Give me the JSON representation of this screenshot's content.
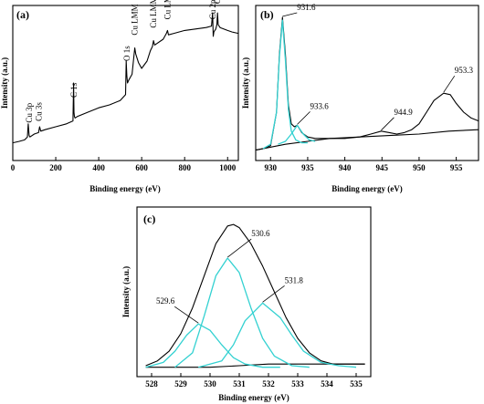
{
  "chart_data": [
    {
      "type": "line",
      "panel_label": "(a)",
      "xlabel": "Binding energy (eV)",
      "ylabel": "Intensity (a.u.)",
      "xlim": [
        0,
        1050
      ],
      "ylim": [
        0,
        100
      ],
      "xticks": [
        0,
        200,
        400,
        600,
        800,
        1000
      ],
      "series": [
        {
          "color": "#000000",
          "x": [
            0,
            30,
            55,
            68,
            72,
            76,
            80,
            100,
            120,
            125,
            130,
            150,
            200,
            250,
            280,
            283,
            285,
            287,
            290,
            300,
            350,
            400,
            450,
            500,
            525,
            528,
            531,
            534,
            540,
            555,
            565,
            568,
            572,
            585,
            600,
            625,
            640,
            650,
            655,
            660,
            700,
            715,
            720,
            725,
            750,
            800,
            850,
            900,
            925,
            930,
            933,
            936,
            945,
            950,
            953,
            956,
            965,
            1000,
            1020,
            1050
          ],
          "y": [
            9,
            10,
            11,
            13,
            22,
            14,
            13,
            15,
            16,
            20,
            17,
            18,
            20,
            22,
            24,
            50,
            30,
            27,
            26,
            27,
            30,
            33,
            35,
            38,
            42,
            65,
            55,
            50,
            52,
            56,
            70,
            74,
            70,
            64,
            60,
            65,
            72,
            75,
            79,
            76,
            80,
            84,
            86,
            83,
            84,
            86,
            87,
            88,
            89,
            98,
            82,
            85,
            87,
            90,
            98,
            90,
            88,
            86,
            85,
            84
          ]
        }
      ],
      "annotations": [
        {
          "text": "Cu 3p",
          "x": 76
        },
        {
          "text": "Cu 3s",
          "x": 122
        },
        {
          "text": "C 1s",
          "x": 285
        },
        {
          "text": "O 1s",
          "x": 531
        },
        {
          "text": "Cu LMM",
          "x": 568
        },
        {
          "text": "Cu LMM",
          "x": 655
        },
        {
          "text": "Cu LMM",
          "x": 720
        },
        {
          "text": "Cu 2p",
          "x": 932
        },
        {
          "text": "Cu 2p",
          "x": 953
        }
      ]
    },
    {
      "type": "line",
      "panel_label": "(b)",
      "xlabel": "Binding energy (eV)",
      "ylabel": "Intensity (a.u.)",
      "xlim": [
        928,
        958
      ],
      "ylim": [
        0,
        100
      ],
      "xticks": [
        930,
        935,
        940,
        945,
        950,
        955
      ],
      "series": [
        {
          "color": "#000000",
          "x": [
            928,
            929,
            930,
            930.8,
            931.2,
            931.6,
            932.0,
            932.4,
            932.8,
            933.2,
            933.6,
            934.2,
            935,
            936,
            938,
            940,
            942,
            943.5,
            944.9,
            946,
            947,
            948,
            949,
            950,
            951,
            952,
            953.3,
            954.2,
            955,
            956,
            957,
            958
          ],
          "y": [
            4,
            5,
            7,
            30,
            70,
            95,
            70,
            35,
            22,
            20,
            21,
            16,
            13,
            12,
            12,
            12,
            13,
            15,
            17,
            16,
            15,
            16,
            18,
            22,
            30,
            38,
            43,
            42,
            36,
            30,
            26,
            24
          ]
        },
        {
          "color": "#000000",
          "x": [
            928,
            932,
            935,
            938,
            942,
            946,
            950,
            954,
            958
          ],
          "y": [
            4,
            8,
            10,
            12,
            13,
            14,
            15,
            17,
            18
          ]
        },
        {
          "color": "#33d1d1",
          "x": [
            929,
            930,
            930.8,
            931.2,
            931.6,
            932.0,
            932.4,
            932.8,
            933.4,
            934.2,
            935
          ],
          "y": [
            5,
            8,
            30,
            68,
            93,
            66,
            32,
            17,
            11,
            9,
            9
          ]
        },
        {
          "color": "#33d1d1",
          "x": [
            931,
            932,
            932.8,
            933.6,
            934.4,
            935.2,
            936
          ],
          "y": [
            8,
            10,
            15,
            21,
            15,
            11,
            10
          ]
        }
      ],
      "annotations": [
        {
          "text": "931.6",
          "x": 931.6,
          "y": 95
        },
        {
          "text": "933.6",
          "x": 933.6,
          "y": 21
        },
        {
          "text": "944.9",
          "x": 944.9,
          "y": 17
        },
        {
          "text": "953.3",
          "x": 953.3,
          "y": 43
        }
      ]
    },
    {
      "type": "line",
      "panel_label": "(c)",
      "xlabel": "Binding energy (eV)",
      "ylabel": "Intensity (a.u.)",
      "xlim": [
        527.5,
        535.5
      ],
      "ylim": [
        0,
        100
      ],
      "xticks": [
        528,
        529,
        530,
        531,
        532,
        533,
        534,
        535
      ],
      "series": [
        {
          "color": "#000000",
          "x": [
            527.8,
            528.2,
            528.6,
            529.0,
            529.4,
            529.8,
            530.2,
            530.6,
            530.8,
            531.0,
            531.4,
            531.8,
            532.2,
            532.6,
            533.0,
            533.4,
            533.8,
            534.2,
            534.6,
            535.0,
            535.3
          ],
          "y": [
            4,
            7,
            13,
            24,
            40,
            60,
            80,
            91,
            92,
            90,
            80,
            66,
            50,
            34,
            21,
            12,
            7,
            5,
            5,
            5,
            5
          ]
        },
        {
          "color": "#000000",
          "x": [
            527.8,
            529,
            530,
            531,
            532,
            533,
            534,
            535.3
          ],
          "y": [
            3,
            3,
            3,
            4,
            5,
            5,
            5,
            5
          ]
        },
        {
          "color": "#33d1d1",
          "x": [
            527.8,
            528.4,
            528.8,
            529.2,
            529.6,
            530.0,
            530.4,
            530.8,
            531.2,
            531.8,
            532.4
          ],
          "y": [
            3,
            6,
            13,
            23,
            30,
            26,
            17,
            9,
            5,
            3,
            3
          ]
        },
        {
          "color": "#33d1d1",
          "x": [
            528.8,
            529.4,
            529.8,
            530.2,
            530.6,
            531.0,
            531.4,
            531.8,
            532.2,
            532.8,
            533.4
          ],
          "y": [
            3,
            12,
            35,
            60,
            71,
            62,
            40,
            21,
            10,
            4,
            3
          ]
        },
        {
          "color": "#33d1d1",
          "x": [
            529.6,
            530.4,
            530.8,
            531.2,
            531.8,
            532.4,
            532.8,
            533.2,
            533.8,
            534.4,
            535.0
          ],
          "y": [
            3,
            7,
            17,
            32,
            43,
            34,
            23,
            13,
            6,
            4,
            3
          ]
        }
      ],
      "annotations": [
        {
          "text": "529.6",
          "x": 529.6,
          "y": 30
        },
        {
          "text": "530.6",
          "x": 530.6,
          "y": 71
        },
        {
          "text": "531.8",
          "x": 531.8,
          "y": 43
        }
      ]
    }
  ]
}
